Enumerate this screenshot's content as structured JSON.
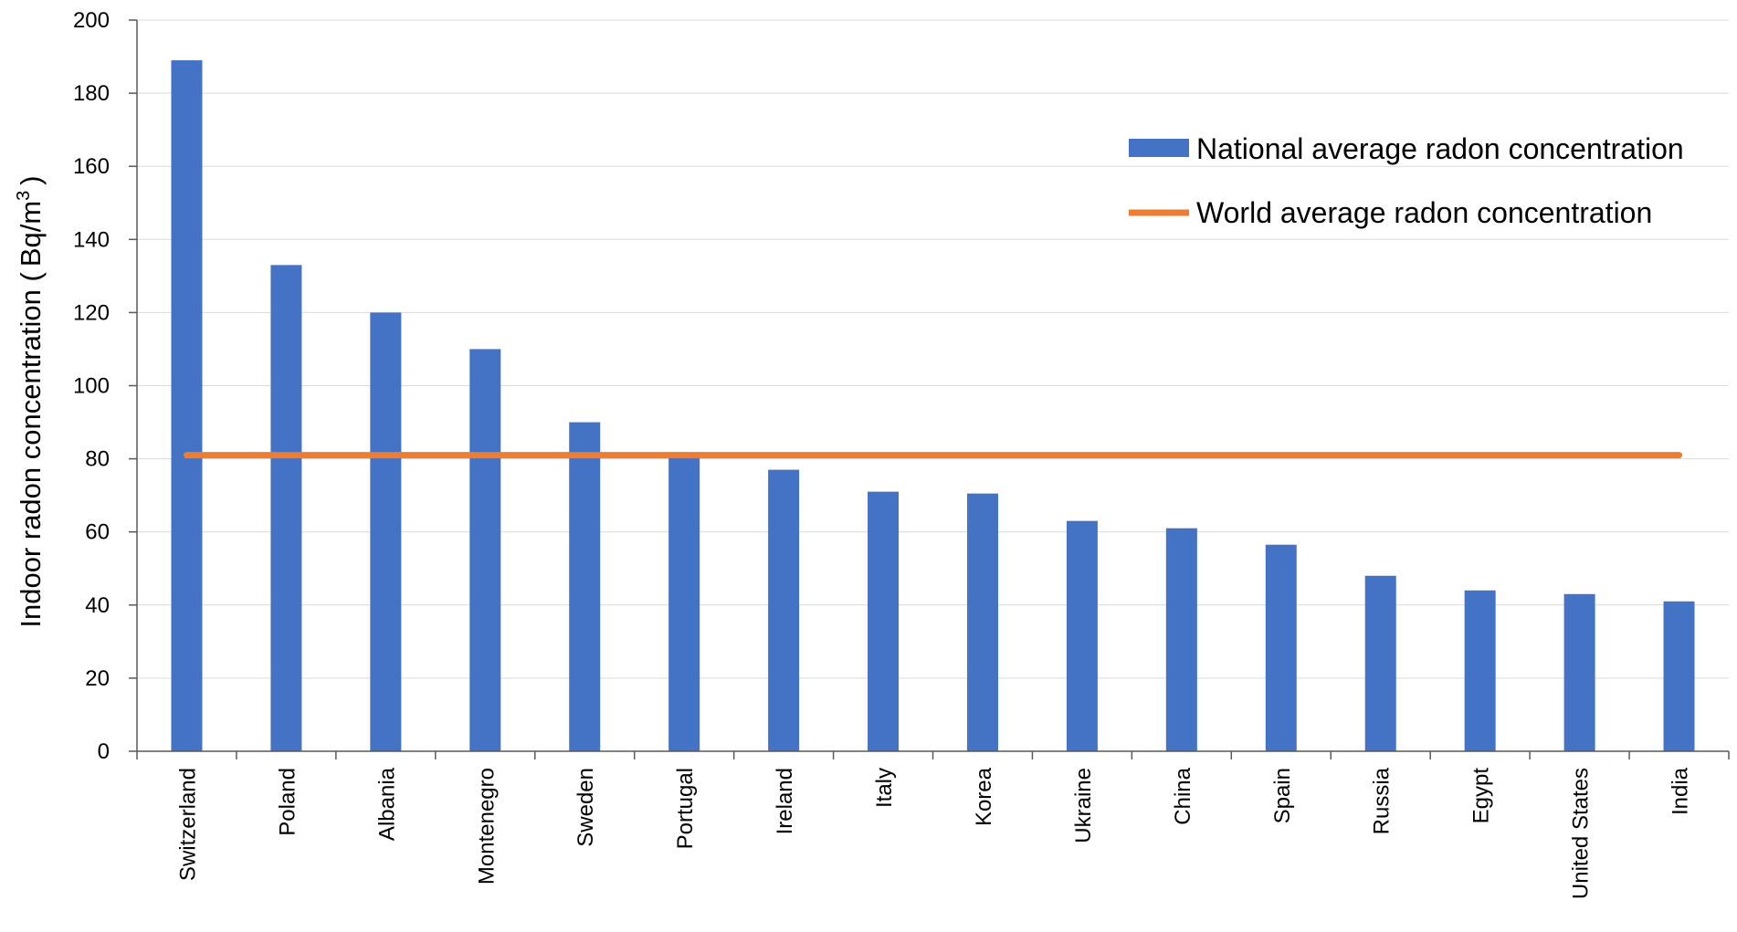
{
  "chart_data": {
    "type": "bar",
    "categories": [
      "Switzerland",
      "Poland",
      "Albania",
      "Montenegro",
      "Sweden",
      "Portugal",
      "Ireland",
      "Italy",
      "Korea",
      "Ukraine",
      "China",
      "Spain",
      "Russia",
      "Egypt",
      "United States",
      "India"
    ],
    "series": [
      {
        "name": "National average radon concentration",
        "type": "bar",
        "color": "#4472C4",
        "values": [
          189,
          133,
          120,
          110,
          90,
          81,
          77,
          71,
          70.5,
          63,
          61,
          56.5,
          48,
          44,
          43,
          41
        ]
      },
      {
        "name": "World average radon concentration",
        "type": "line",
        "color": "#ED7D31",
        "value": 81
      }
    ],
    "ylabel": {
      "main": "Indoor radon concentration (",
      "unit_base": "Bq/m",
      "unit_sup": "3",
      "close": ")"
    },
    "ylim": [
      0,
      200
    ],
    "yticks": [
      "0",
      "20",
      "40",
      "60",
      "80",
      "100",
      "120",
      "140",
      "160",
      "180",
      "200"
    ],
    "grid": true,
    "legend_position": "top-right"
  }
}
